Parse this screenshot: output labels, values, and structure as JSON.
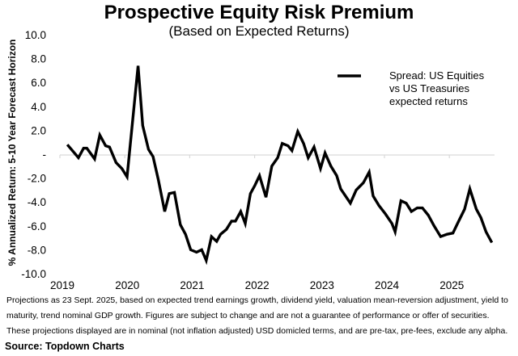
{
  "chart_data": {
    "type": "line",
    "title": "Prospective Equity Risk Premium",
    "subtitle": "(Based on Expected Returns)",
    "xlabel": "",
    "ylabel": "% Annualized Return: 5-10 Year Forecast Horizon",
    "ylim": [
      -10,
      10
    ],
    "xlim": [
      2019,
      2025.8
    ],
    "yticks": [
      10,
      8,
      6,
      4,
      2,
      0,
      -2,
      -4,
      -6,
      -8,
      -10
    ],
    "ytick_labels": [
      "10.0",
      "8.0",
      "6.0",
      "4.0",
      "2.0",
      "-",
      "-2.0",
      "-4.0",
      "-6.0",
      "-8.0",
      "-10.0"
    ],
    "xticks": [
      2019,
      2020,
      2021,
      2022,
      2023,
      2024,
      2025
    ],
    "xtick_labels": [
      "2019",
      "2020",
      "2021",
      "2022",
      "2023",
      "2024",
      "2025"
    ],
    "grid": false,
    "zero_line": true,
    "legend": {
      "placement": "top-right",
      "entries": [
        "Spread: US Equities vs US Treasuries expected returns"
      ]
    },
    "series": [
      {
        "name": "Spread: US Equities vs US Treasuries expected returns",
        "color": "#000000",
        "x": [
          2019.09,
          2019.26,
          2019.34,
          2019.39,
          2019.51,
          2019.59,
          2019.68,
          2019.74,
          2019.84,
          2019.93,
          2020.01,
          2020.18,
          2020.25,
          2020.34,
          2020.41,
          2020.49,
          2020.59,
          2020.66,
          2020.74,
          2020.83,
          2020.91,
          2020.99,
          2021.08,
          2021.16,
          2021.23,
          2021.31,
          2021.39,
          2021.45,
          2021.54,
          2021.62,
          2021.68,
          2021.76,
          2021.83,
          2021.91,
          2021.98,
          2022.05,
          2022.15,
          2022.24,
          2022.33,
          2022.4,
          2022.49,
          2022.55,
          2022.64,
          2022.73,
          2022.8,
          2022.89,
          2022.99,
          2023.06,
          2023.15,
          2023.24,
          2023.3,
          2023.45,
          2023.54,
          2023.65,
          2023.74,
          2023.8,
          2023.89,
          2023.99,
          2024.09,
          2024.14,
          2024.23,
          2024.31,
          2024.39,
          2024.48,
          2024.56,
          2024.65,
          2024.74,
          2024.84,
          2024.94,
          2025.03,
          2025.11,
          2025.21,
          2025.29,
          2025.39,
          2025.46,
          2025.54,
          2025.63
        ],
        "y": [
          0.8,
          -0.3,
          0.5,
          0.5,
          -0.4,
          1.6,
          0.7,
          0.6,
          -0.7,
          -1.2,
          -1.9,
          7.4,
          2.4,
          0.4,
          -0.2,
          -2.1,
          -4.8,
          -3.3,
          -3.2,
          -5.9,
          -6.7,
          -8.0,
          -8.2,
          -8.0,
          -8.9,
          -6.9,
          -7.3,
          -6.7,
          -6.3,
          -5.6,
          -5.6,
          -4.8,
          -5.8,
          -3.3,
          -2.6,
          -1.8,
          -3.6,
          -1.0,
          -0.3,
          0.9,
          0.7,
          0.3,
          1.9,
          0.9,
          -0.3,
          0.6,
          -1.2,
          0.1,
          -1.0,
          -1.8,
          -2.9,
          -4.1,
          -3.0,
          -2.4,
          -1.5,
          -3.5,
          -4.3,
          -5.0,
          -5.8,
          -6.5,
          -3.9,
          -4.1,
          -4.8,
          -4.5,
          -4.5,
          -5.1,
          -6.0,
          -6.9,
          -6.7,
          -6.6,
          -5.7,
          -4.6,
          -2.9,
          -4.6,
          -5.3,
          -6.5,
          -7.4
        ]
      }
    ]
  },
  "footnotes": [
    "Projections as 23 Sept. 2025, based on expected trend earnings growth, dividend yield, valuation mean-reversion adjustment, yield to",
    "maturity, trend nominal GDP growth.  Figures are subject to change and are not a guarantee of performance or offer of securities.",
    "These projections displayed are in nominal (not inflation adjusted) USD domicled terms, and are pre-tax, pre-fees, exclude any alpha."
  ],
  "source": "Source: Topdown Charts",
  "legend_lines": [
    "Spread: US Equities",
    "vs US Treasuries",
    "expected returns"
  ]
}
